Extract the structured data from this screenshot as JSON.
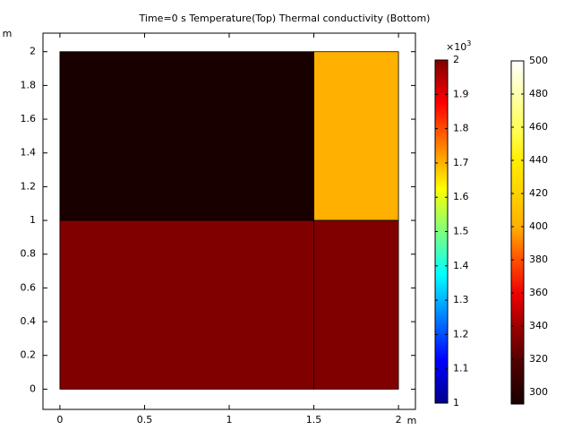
{
  "chart_data": {
    "type": "surface",
    "title": "Time=0 s  Temperature(Top) Thermal conductivity (Bottom)",
    "xlabel": "m",
    "ylabel": "m",
    "xlim": [
      -0.1,
      2.1
    ],
    "ylim": [
      -0.12,
      2.11
    ],
    "xticks": [
      0,
      0.5,
      1,
      1.5,
      2
    ],
    "yticks": [
      0,
      0.2,
      0.4,
      0.6,
      0.8,
      1,
      1.2,
      1.4,
      1.6,
      1.8,
      2
    ],
    "regions": [
      {
        "x0": 0,
        "x1": 1.5,
        "y0": 1,
        "y1": 2,
        "value": 293,
        "colorbar": 1
      },
      {
        "x0": 1.5,
        "x1": 2,
        "y0": 1,
        "y1": 2,
        "value": 400,
        "colorbar": 1
      },
      {
        "x0": 0,
        "x1": 1.5,
        "y0": 0,
        "y1": 1,
        "value": 2,
        "colorbar": 0
      },
      {
        "x0": 1.5,
        "x1": 2,
        "y0": 0,
        "y1": 1,
        "value": 2,
        "colorbar": 0
      }
    ],
    "colorbars": [
      {
        "colormap": "jet",
        "lim": [
          1,
          2
        ],
        "ticks": [
          1,
          1.1,
          1.2,
          1.3,
          1.4,
          1.5,
          1.6,
          1.7,
          1.8,
          1.9,
          2
        ],
        "multiplier": "×10",
        "exponent": "3"
      },
      {
        "colormap": "heat",
        "lim": [
          293,
          500
        ],
        "ticks": [
          300,
          320,
          340,
          360,
          380,
          400,
          420,
          440,
          460,
          480,
          500
        ]
      }
    ]
  }
}
